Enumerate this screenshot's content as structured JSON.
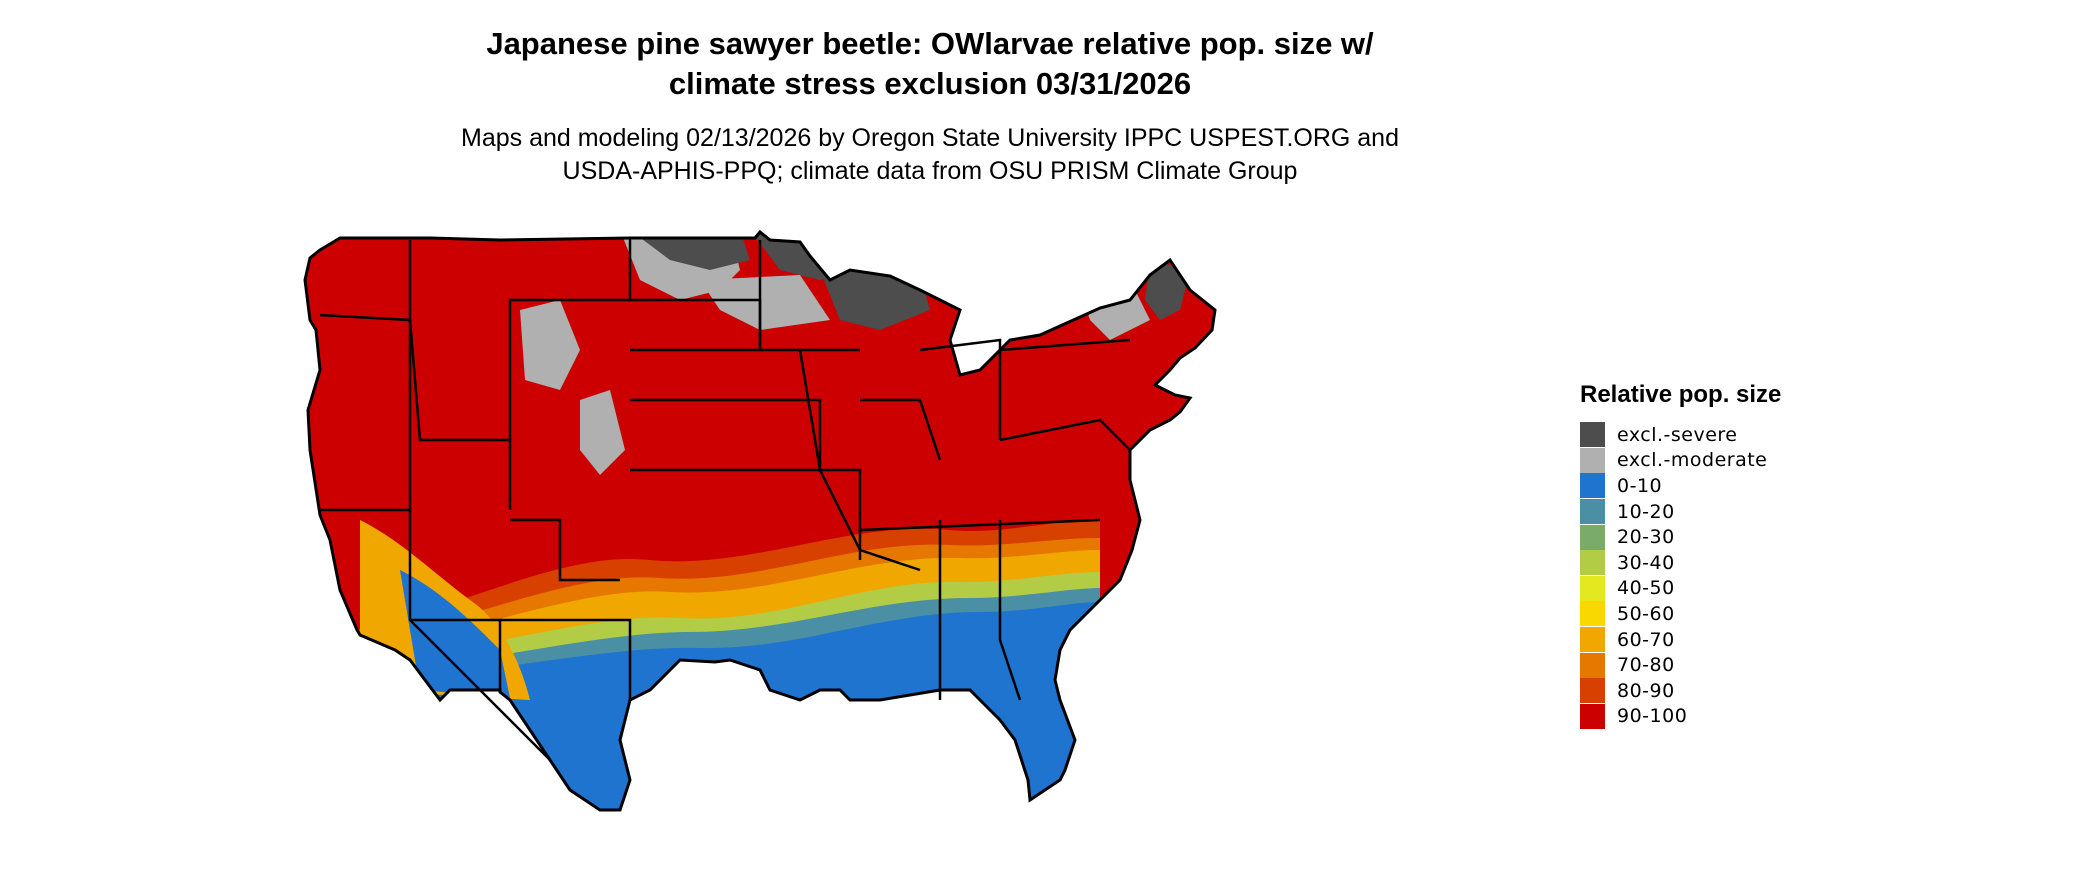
{
  "title_line1": "Japanese pine sawyer beetle: OWlarvae relative pop. size w/",
  "title_line2": "climate stress exclusion 03/31/2026",
  "subtitle_line1": "Maps and modeling 02/13/2026 by Oregon State University IPPC USPEST.ORG and",
  "subtitle_line2": "USDA-APHIS-PPQ; climate data from OSU PRISM Climate Group",
  "legend": {
    "title": "Relative pop. size",
    "items": [
      {
        "label": "excl.-severe",
        "color": "#4d4d4d"
      },
      {
        "label": "excl.-moderate",
        "color": "#b0b0b0"
      },
      {
        "label": "0-10",
        "color": "#1f74d0"
      },
      {
        "label": "10-20",
        "color": "#4a8fa3"
      },
      {
        "label": "20-30",
        "color": "#7aab6a"
      },
      {
        "label": "30-40",
        "color": "#b2cc46"
      },
      {
        "label": "40-50",
        "color": "#e4e81e"
      },
      {
        "label": "50-60",
        "color": "#f8d800"
      },
      {
        "label": "60-70",
        "color": "#f0a800"
      },
      {
        "label": "70-80",
        "color": "#e67800"
      },
      {
        "label": "80-90",
        "color": "#d84000"
      },
      {
        "label": "90-100",
        "color": "#cc0000"
      }
    ]
  }
}
